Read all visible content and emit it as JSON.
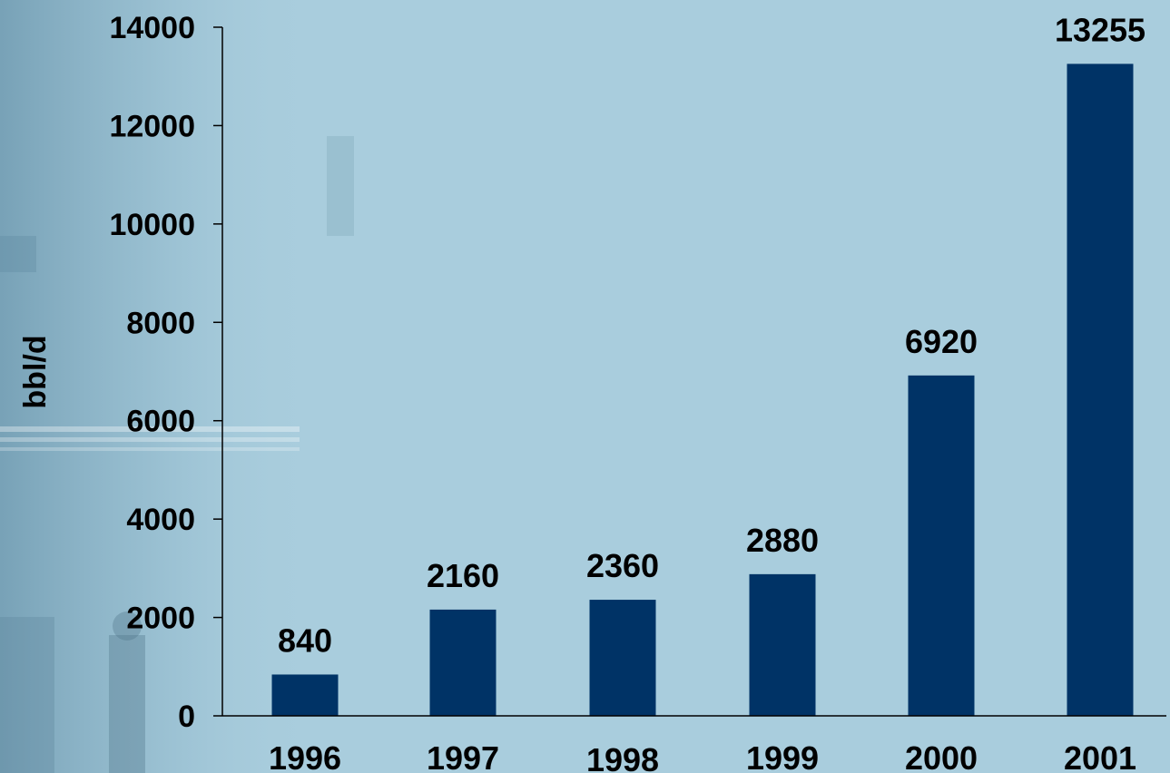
{
  "chart_data": {
    "type": "bar",
    "categories": [
      "1996",
      "1997",
      "1998",
      "1999",
      "2000",
      "2001"
    ],
    "values": [
      840,
      2160,
      2360,
      2880,
      6920,
      13255
    ],
    "data_labels": [
      "840",
      "2160",
      "2360",
      "2880",
      "6920",
      "13255"
    ],
    "title": "",
    "xlabel": "",
    "ylabel": "bbl/d",
    "ylim": [
      0,
      14000
    ],
    "yticks": [
      0,
      2000,
      4000,
      6000,
      8000,
      10000,
      12000,
      14000
    ],
    "ytick_labels": [
      "0",
      "2000",
      "4000",
      "6000",
      "8000",
      "10000",
      "12000",
      "14000"
    ],
    "grid": false,
    "legend": "none",
    "colors": {
      "bar": "#003366",
      "axis": "#000000",
      "background": "#a9cddd"
    }
  }
}
